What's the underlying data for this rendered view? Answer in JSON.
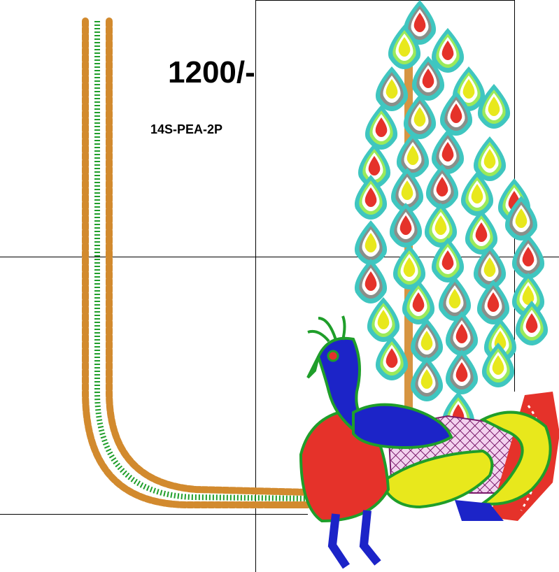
{
  "design": {
    "price": "1200/-",
    "code": "14S-PEA-2P"
  },
  "colors": {
    "border_gold": "#d28a2e",
    "border_gold_light": "#f0b45a",
    "border_green": "#1f9e2a",
    "peacock_blue": "#1c24c8",
    "peacock_red": "#e5322a",
    "peacock_yellow": "#e8e81c",
    "feather_teal": "#3fc6c0",
    "feather_light_green": "#9bea5a",
    "feather_gray": "#8a8f8a",
    "net_purple": "#7a1a6a"
  },
  "motifs": [
    "u-shaped-bead-border",
    "peacock",
    "peacock-tail-feathers"
  ]
}
